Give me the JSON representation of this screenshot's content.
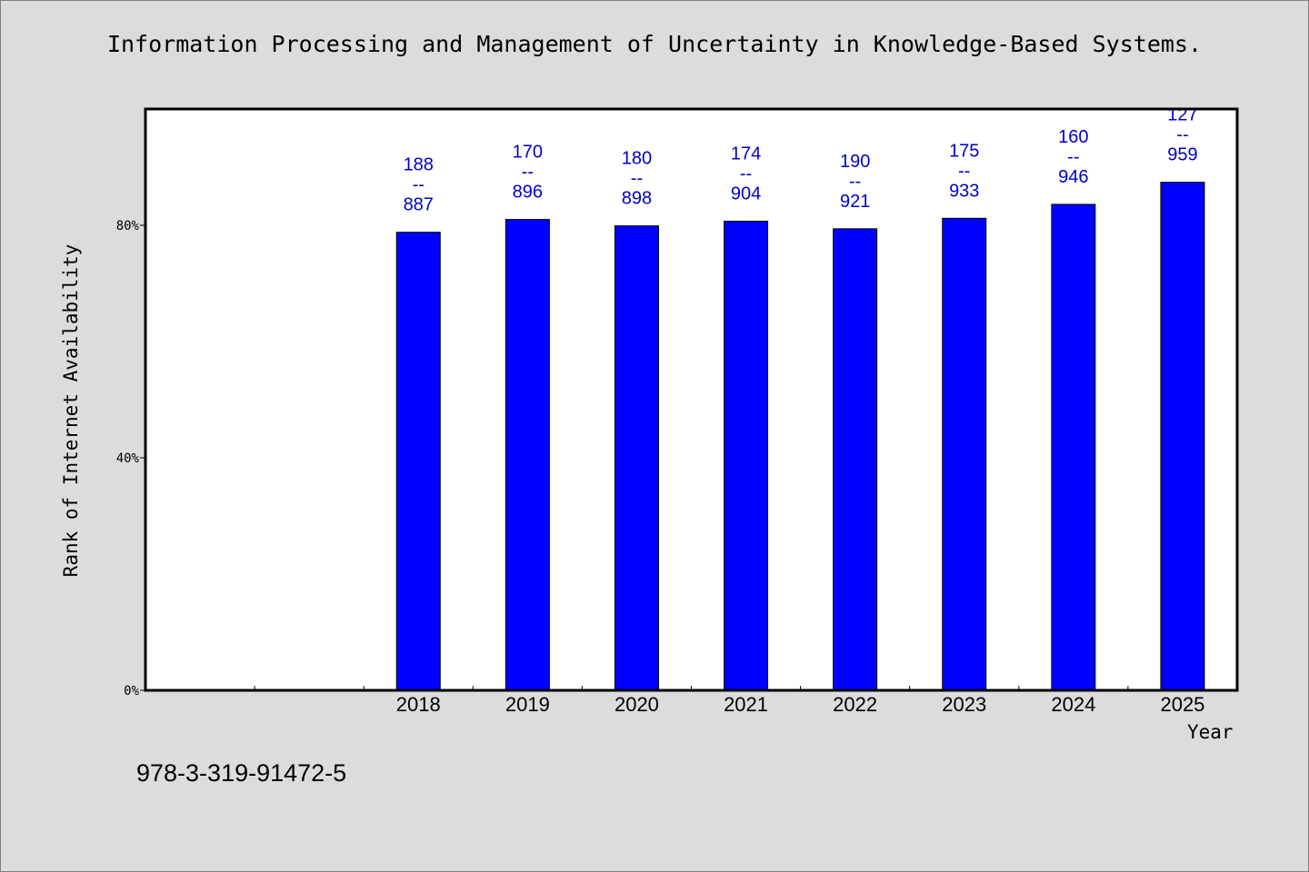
{
  "chart_data": {
    "type": "bar",
    "title": "Information Processing and Management of Uncertainty in Knowledge-Based Systems.",
    "xlabel": "Year",
    "ylabel": "Rank of Internet Availability",
    "categories": [
      "",
      "",
      "2018",
      "2019",
      "2020",
      "2021",
      "2022",
      "2023",
      "2024",
      "2025"
    ],
    "values": [
      null,
      null,
      78.8,
      81.0,
      79.9,
      80.7,
      79.4,
      81.2,
      83.6,
      87.4
    ],
    "top_labels": [
      "",
      "",
      "188",
      "170",
      "180",
      "174",
      "190",
      "175",
      "160",
      "127"
    ],
    "bottom_labels": [
      "",
      "",
      "887",
      "896",
      "898",
      "904",
      "921",
      "933",
      "946",
      "959"
    ],
    "label_separator": "--",
    "yticks": [
      {
        "value": 0,
        "label": "0%"
      },
      {
        "value": 40,
        "label": "40%"
      },
      {
        "value": 80,
        "label": "80%"
      }
    ],
    "ylim": [
      0,
      100
    ],
    "grid": false,
    "legend": "none",
    "bar_color": "#0000ff",
    "label_color": "#0000c8",
    "plot_background": "#ffffff",
    "page_background": "#dcdcdc"
  },
  "footer_text": "978-3-319-91472-5"
}
